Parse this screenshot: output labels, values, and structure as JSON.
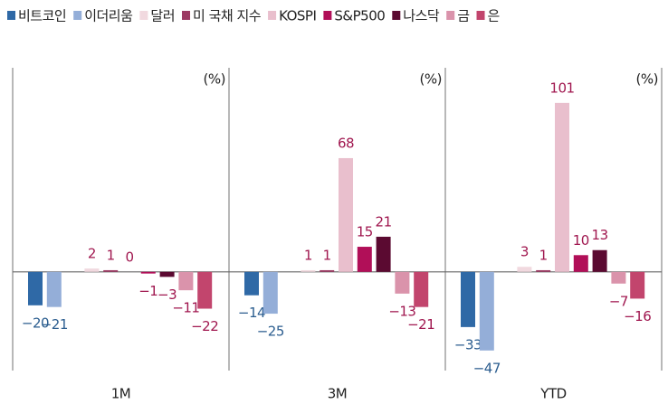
{
  "chart_data": {
    "type": "bar",
    "categories": [
      "1M",
      "3M",
      "YTD"
    ],
    "unit_label": "(%)",
    "ylim": [
      -59,
      122
    ],
    "series": [
      {
        "name": "비트코인",
        "color": "#2f69a6",
        "label_color": "#2b5d8f",
        "values": [
          -20,
          -14,
          -33
        ],
        "value_labels": [
          "−20",
          "−14",
          "−33"
        ]
      },
      {
        "name": "이더리움",
        "color": "#94aed8",
        "label_color": "#2b5d8f",
        "values": [
          -21,
          -25,
          -47
        ],
        "value_labels": [
          "−21",
          "−25",
          "−47"
        ]
      },
      {
        "name": "달러",
        "color": "#f1d9df",
        "label_color": "#a0174f",
        "values": [
          2,
          1,
          3
        ]
      },
      {
        "name": "미 국채 지수",
        "color": "#9c3a63",
        "label_color": "#a0174f",
        "values": [
          1,
          1,
          1
        ]
      },
      {
        "name": "KOSPI",
        "color": "#e9bfcd",
        "label_color": "#a0174f",
        "values": [
          0,
          68,
          101
        ]
      },
      {
        "name": "S&P500",
        "color": "#b10f58",
        "label_color": "#a0174f",
        "values": [
          -1,
          15,
          10
        ],
        "value_labels": [
          "−1",
          "15",
          "10"
        ]
      },
      {
        "name": "나스닥",
        "color": "#5b0a31",
        "label_color": "#a0174f",
        "values": [
          -3,
          21,
          13
        ],
        "value_labels": [
          "−3",
          "21",
          "13"
        ]
      },
      {
        "name": "금",
        "color": "#da93ab",
        "label_color": "#a0174f",
        "values": [
          -11,
          -13,
          -7
        ],
        "value_labels": [
          "−11",
          "−13",
          "−7"
        ]
      },
      {
        "name": "은",
        "color": "#c2456d",
        "label_color": "#a0174f",
        "values": [
          -22,
          -21,
          -16
        ],
        "value_labels": [
          "−22",
          "−21",
          "−16"
        ]
      }
    ]
  }
}
